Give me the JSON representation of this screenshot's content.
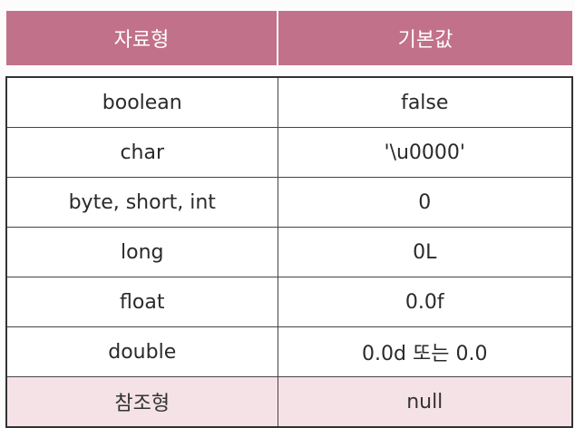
{
  "headers": [
    "자료형",
    "기본값"
  ],
  "rows": [
    {
      "type": "boolean",
      "default": "false"
    },
    {
      "type": "char",
      "default": "'\\u0000'"
    },
    {
      "type": "byte, short, int",
      "default": "0"
    },
    {
      "type": "long",
      "default": "0L"
    },
    {
      "type": "float",
      "default": "0.0f"
    },
    {
      "type": "double",
      "default": "0.0d 또는 0.0"
    },
    {
      "type": "참조형",
      "default": "null"
    }
  ],
  "colors": {
    "header_background": "#c2718a",
    "reference_row_background": "#f5e2e7"
  }
}
